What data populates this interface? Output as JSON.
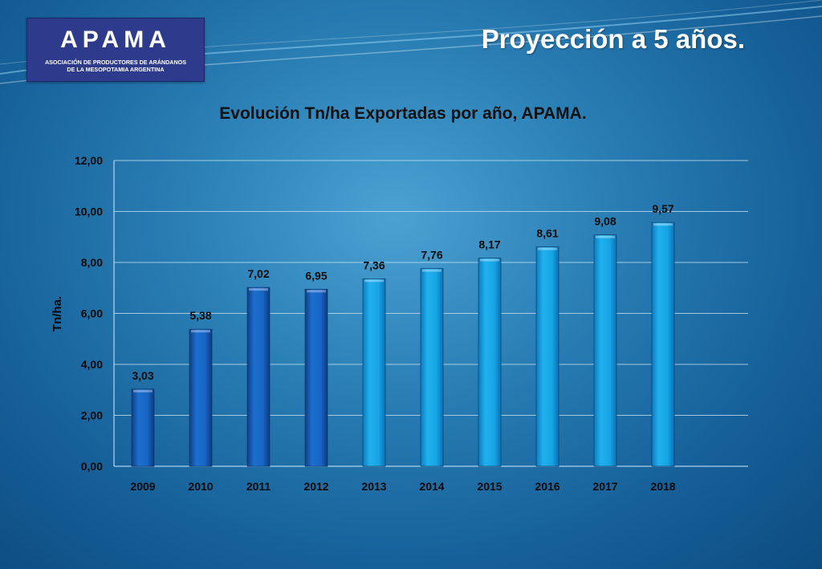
{
  "slide": {
    "title": "Proyección a 5 años."
  },
  "logo": {
    "wordmark": "APAMA",
    "line1": "ASOCIACIÓN DE PRODUCTORES DE ARÁNDANOS",
    "line2": "DE LA MESOPOTAMIA ARGENTINA"
  },
  "colors": {
    "actual_bar": "#1565c0",
    "projected_bar": "#15a6e6",
    "background": "#2a7fb5"
  },
  "chart_data": {
    "type": "bar",
    "title": "Evolución Tn/ha Exportadas por año, APAMA.",
    "xlabel": "",
    "ylabel": "Tn/ha.",
    "categories": [
      "2009",
      "2010",
      "2011",
      "2012",
      "2013",
      "2014",
      "2015",
      "2016",
      "2017",
      "2018"
    ],
    "values": [
      3.03,
      5.38,
      7.02,
      6.95,
      7.36,
      7.76,
      8.17,
      8.61,
      9.08,
      9.57
    ],
    "value_labels": [
      "3,03",
      "5,38",
      "7,02",
      "6,95",
      "7,36",
      "7,76",
      "8,17",
      "8,61",
      "9,08",
      "9,57"
    ],
    "bar_group": [
      "actual",
      "actual",
      "actual",
      "actual",
      "projected",
      "projected",
      "projected",
      "projected",
      "projected",
      "projected"
    ],
    "ylim": [
      0,
      12
    ],
    "yticks": [
      0,
      2,
      4,
      6,
      8,
      10,
      12
    ],
    "ytick_labels": [
      "0,00",
      "2,00",
      "4,00",
      "6,00",
      "8,00",
      "10,00",
      "12,00"
    ],
    "grid": true,
    "legend": "none"
  }
}
